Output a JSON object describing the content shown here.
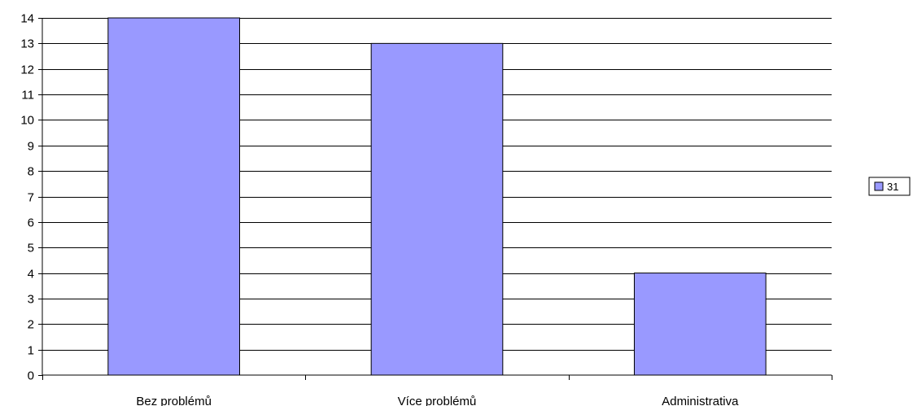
{
  "chart_data": {
    "type": "bar",
    "categories": [
      "Bez problémů",
      "Více problémů",
      "Administrativa"
    ],
    "series": [
      {
        "name": "31",
        "values": [
          14,
          13,
          4
        ],
        "color": "#9999ff"
      }
    ],
    "ylim": [
      0,
      14
    ],
    "yticks": [
      0,
      1,
      2,
      3,
      4,
      5,
      6,
      7,
      8,
      9,
      10,
      11,
      12,
      13,
      14
    ],
    "grid": true,
    "legend": "right"
  }
}
